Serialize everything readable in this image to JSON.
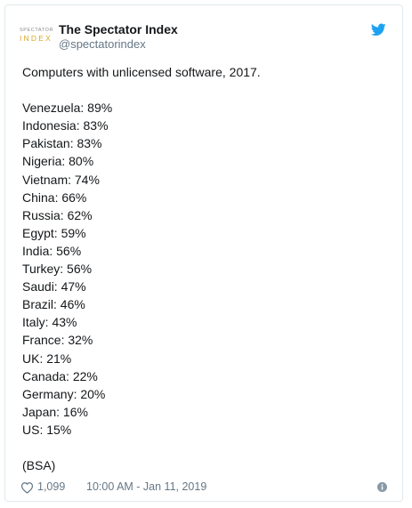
{
  "header": {
    "avatar_line1": "SPECTATOR",
    "avatar_line2": "INDEX",
    "display_name": "The Spectator Index",
    "handle": "@spectatorindex"
  },
  "tweet": {
    "title": "Computers with unlicensed software, 2017.",
    "items": [
      "Venezuela: 89%",
      "Indonesia: 83%",
      "Pakistan: 83%",
      "Nigeria: 80%",
      "Vietnam: 74%",
      "China: 66%",
      "Russia: 62%",
      "Egypt: 59%",
      "India: 56%",
      "Turkey: 56%",
      "Saudi: 47%",
      "Brazil: 46%",
      "Italy: 43%",
      "France: 32%",
      "UK: 21%",
      "Canada: 22%",
      "Germany: 20%",
      "Japan: 16%",
      "US: 15%"
    ],
    "source": "(BSA)"
  },
  "footer": {
    "likes": "1,099",
    "timestamp": "10:00 AM - Jan 11, 2019"
  },
  "icons": {
    "bird": "twitter-bird-icon",
    "heart": "heart-icon",
    "info": "info-icon"
  },
  "colors": {
    "twitter_blue": "#1da1f2",
    "text": "#14171a",
    "muted": "#657786",
    "border": "#e1e8ed",
    "logo_gold": "#d9a72a"
  }
}
